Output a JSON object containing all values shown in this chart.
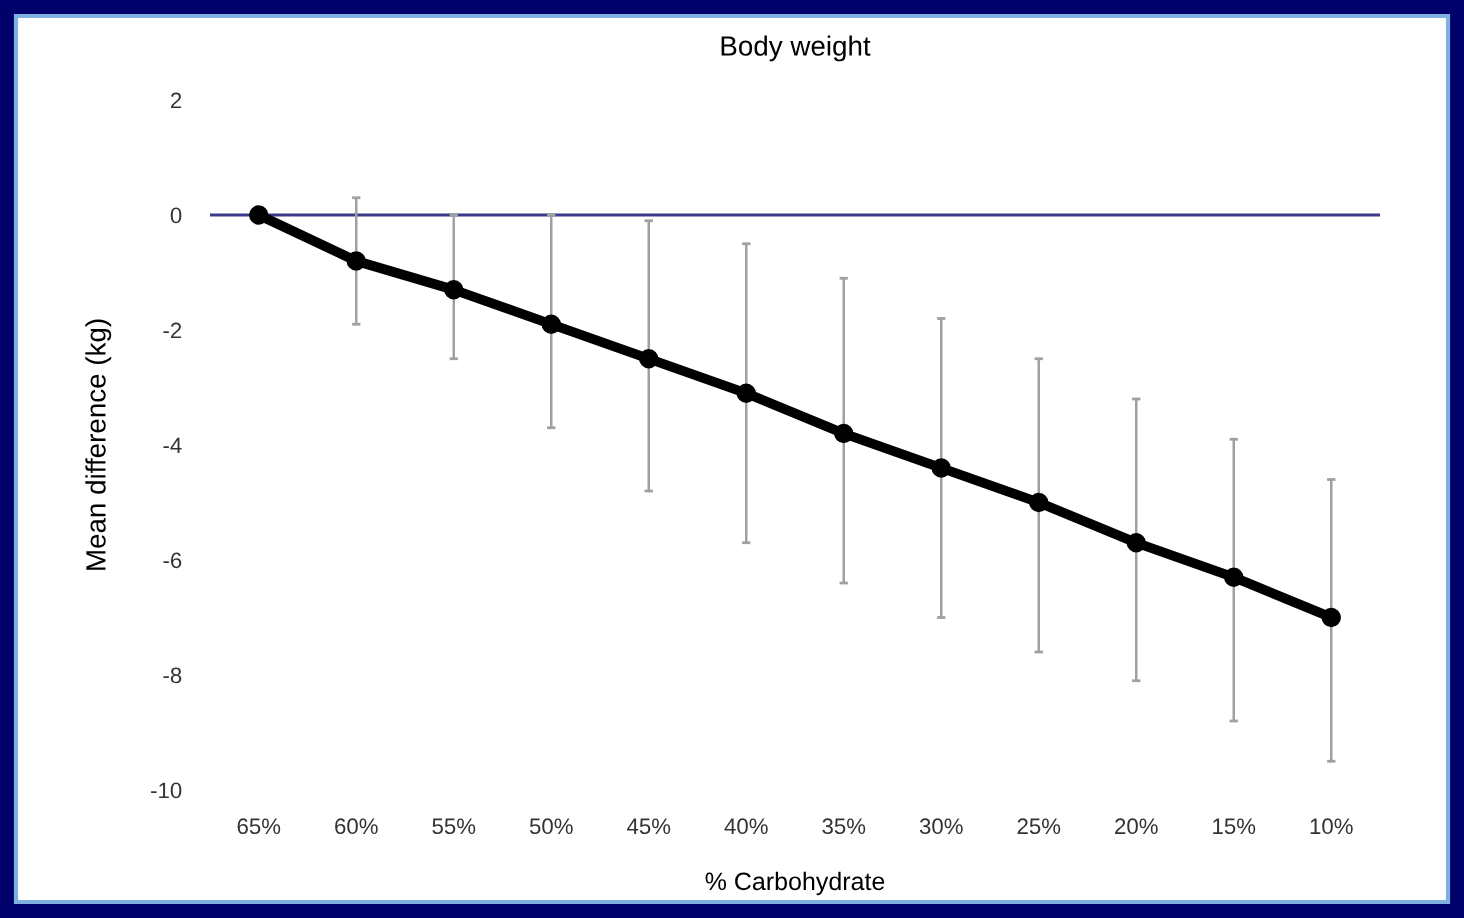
{
  "chart_data": {
    "type": "line",
    "title": "Body weight",
    "xlabel": "% Carbohydrate",
    "ylabel": "Mean difference (kg)",
    "categories": [
      "65%",
      "60%",
      "55%",
      "50%",
      "45%",
      "40%",
      "35%",
      "30%",
      "25%",
      "20%",
      "15%",
      "10%"
    ],
    "series": [
      {
        "color": "#000000",
        "values": [
          0,
          -0.8,
          -1.3,
          -1.9,
          -2.5,
          -3.1,
          -3.8,
          -4.4,
          -5.0,
          -5.7,
          -6.3,
          -7.0
        ],
        "errors": [
          null,
          [
            -1.9,
            0.3
          ],
          [
            -2.5,
            0.0
          ],
          [
            -3.7,
            0.0
          ],
          [
            -4.8,
            -0.1
          ],
          [
            -5.7,
            -0.5
          ],
          [
            -6.4,
            -1.1
          ],
          [
            -7.0,
            -1.8
          ],
          [
            -7.6,
            -2.5
          ],
          [
            -8.1,
            -3.2
          ],
          [
            -8.8,
            -3.9
          ],
          [
            -9.5,
            -4.6
          ]
        ]
      }
    ],
    "ylim": [
      -10,
      2
    ],
    "yticks": [
      -10,
      -8,
      -6,
      -4,
      -2,
      0,
      2
    ],
    "ref_lines": [
      {
        "axis": "y",
        "value": 0,
        "color": "#3a3a8c"
      }
    ],
    "grid": false,
    "legend": false,
    "marker": "circle",
    "line_style": "solid"
  }
}
